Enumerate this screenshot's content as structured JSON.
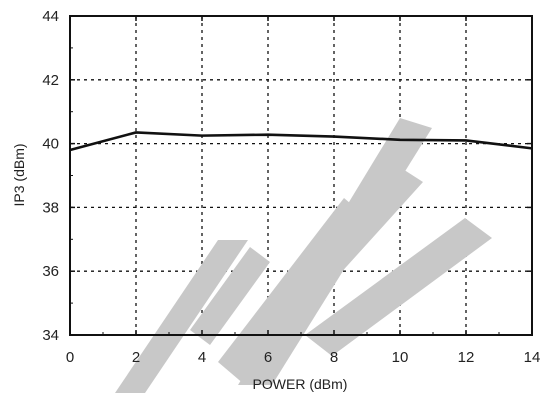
{
  "chart_data": {
    "type": "line",
    "title": "",
    "xlabel": "POWER (dBm)",
    "ylabel": "IP3 (dBm)",
    "xlim": [
      0,
      14
    ],
    "ylim": [
      34,
      44
    ],
    "xticks": [
      0,
      2,
      4,
      6,
      8,
      10,
      12,
      14
    ],
    "yticks": [
      34,
      36,
      38,
      40,
      42,
      44
    ],
    "x_tick_labels": [
      "0",
      "2",
      "4",
      "6",
      "8",
      "10",
      "12",
      "14"
    ],
    "y_tick_labels": [
      "34",
      "36",
      "38",
      "40",
      "42",
      "44"
    ],
    "grid": true,
    "grid_style": "dotted",
    "series": [
      {
        "x": [
          0,
          2,
          4,
          6,
          8,
          10,
          12,
          14
        ],
        "y": [
          39.8,
          40.35,
          40.25,
          40.28,
          40.22,
          40.12,
          40.1,
          39.85
        ],
        "color": "#111111"
      }
    ],
    "watermark": {
      "color": "#c8c8c8"
    }
  }
}
